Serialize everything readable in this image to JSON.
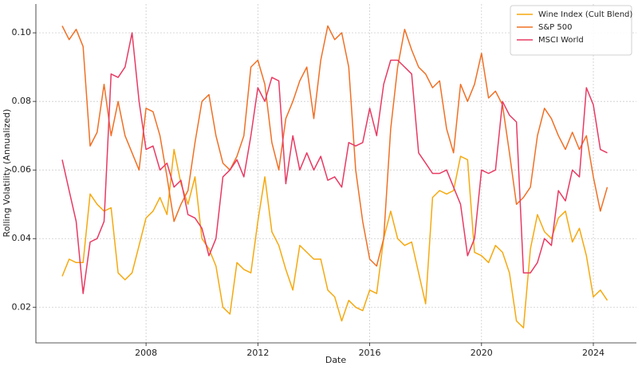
{
  "chart_data": {
    "type": "line",
    "x_label": "Date",
    "y_label": "Rolling Volatility (Annualized)",
    "x": [
      2005,
      2005.25,
      2005.5,
      2005.75,
      2006,
      2006.25,
      2006.5,
      2006.75,
      2007,
      2007.25,
      2007.5,
      2007.75,
      2008,
      2008.25,
      2008.5,
      2008.75,
      2009,
      2009.25,
      2009.5,
      2009.75,
      2010,
      2010.25,
      2010.5,
      2010.75,
      2011,
      2011.25,
      2011.5,
      2011.75,
      2012,
      2012.25,
      2012.5,
      2012.75,
      2013,
      2013.25,
      2013.5,
      2013.75,
      2014,
      2014.25,
      2014.5,
      2014.75,
      2015,
      2015.25,
      2015.5,
      2015.75,
      2016,
      2016.25,
      2016.5,
      2016.75,
      2017,
      2017.25,
      2017.5,
      2017.75,
      2018,
      2018.25,
      2018.5,
      2018.75,
      2019,
      2019.25,
      2019.5,
      2019.75,
      2020,
      2020.25,
      2020.5,
      2020.75,
      2021,
      2021.25,
      2021.5,
      2021.75,
      2022,
      2022.25,
      2022.5,
      2022.75,
      2023,
      2023.25,
      2023.5,
      2023.75,
      2024,
      2024.25,
      2024.5
    ],
    "series": [
      {
        "name": "Wine Index (Cult Blend)",
        "color": "#f5a90f",
        "values": [
          0.029,
          0.034,
          0.033,
          0.033,
          0.053,
          0.05,
          0.048,
          0.049,
          0.03,
          0.028,
          0.03,
          0.038,
          0.046,
          0.048,
          0.052,
          0.047,
          0.066,
          0.056,
          0.05,
          0.058,
          0.04,
          0.037,
          0.032,
          0.02,
          0.018,
          0.033,
          0.031,
          0.03,
          0.045,
          0.058,
          0.042,
          0.038,
          0.031,
          0.025,
          0.038,
          0.036,
          0.034,
          0.034,
          0.025,
          0.023,
          0.016,
          0.022,
          0.02,
          0.019,
          0.025,
          0.024,
          0.04,
          0.048,
          0.04,
          0.038,
          0.039,
          0.03,
          0.021,
          0.052,
          0.054,
          0.053,
          0.054,
          0.064,
          0.063,
          0.036,
          0.035,
          0.033,
          0.038,
          0.036,
          0.03,
          0.016,
          0.014,
          0.037,
          0.047,
          0.042,
          0.04,
          0.046,
          0.048,
          0.039,
          0.043,
          0.035,
          0.023,
          0.025,
          0.022
        ]
      },
      {
        "name": "S&P 500",
        "color": "#f07025",
        "values": [
          0.102,
          0.098,
          0.101,
          0.096,
          0.067,
          0.071,
          0.085,
          0.07,
          0.08,
          0.07,
          0.065,
          0.06,
          0.078,
          0.077,
          0.07,
          0.058,
          0.045,
          0.05,
          0.054,
          0.068,
          0.08,
          0.082,
          0.07,
          0.062,
          0.06,
          0.064,
          0.07,
          0.09,
          0.092,
          0.085,
          0.068,
          0.06,
          0.075,
          0.08,
          0.086,
          0.09,
          0.075,
          0.092,
          0.102,
          0.098,
          0.1,
          0.09,
          0.06,
          0.045,
          0.034,
          0.032,
          0.04,
          0.072,
          0.09,
          0.101,
          0.095,
          0.09,
          0.088,
          0.084,
          0.086,
          0.072,
          0.065,
          0.085,
          0.08,
          0.085,
          0.094,
          0.081,
          0.083,
          0.079,
          0.065,
          0.05,
          0.052,
          0.055,
          0.07,
          0.078,
          0.075,
          0.07,
          0.066,
          0.071,
          0.066,
          0.07,
          0.058,
          0.048,
          0.055
        ]
      },
      {
        "name": "MSCI World",
        "color": "#e83a63",
        "values": [
          0.063,
          0.054,
          0.045,
          0.024,
          0.039,
          0.04,
          0.045,
          0.088,
          0.087,
          0.09,
          0.1,
          0.08,
          0.066,
          0.067,
          0.06,
          0.062,
          0.055,
          0.057,
          0.047,
          0.046,
          0.043,
          0.035,
          0.04,
          0.058,
          0.06,
          0.063,
          0.058,
          0.07,
          0.084,
          0.08,
          0.087,
          0.086,
          0.056,
          0.07,
          0.06,
          0.065,
          0.06,
          0.064,
          0.057,
          0.058,
          0.055,
          0.068,
          0.067,
          0.068,
          0.078,
          0.07,
          0.085,
          0.092,
          0.092,
          0.09,
          0.088,
          0.065,
          0.062,
          0.059,
          0.059,
          0.06,
          0.055,
          0.05,
          0.035,
          0.04,
          0.06,
          0.059,
          0.06,
          0.08,
          0.076,
          0.074,
          0.03,
          0.03,
          0.033,
          0.04,
          0.038,
          0.054,
          0.051,
          0.06,
          0.058,
          0.084,
          0.079,
          0.066,
          0.065
        ]
      }
    ],
    "xlim": [
      2004.06,
      2025.54
    ],
    "xticks": [
      2008,
      2012,
      2016,
      2020,
      2024
    ],
    "ylim": [
      0.0096,
      0.1084
    ],
    "yticks": [
      {
        "value": 0.02,
        "label": "0.02"
      },
      {
        "value": 0.04,
        "label": "0.04"
      },
      {
        "value": 0.06,
        "label": "0.06"
      },
      {
        "value": 0.08,
        "label": "0.08"
      },
      {
        "value": 0.1,
        "label": "0.10"
      }
    ],
    "grid": true,
    "legend": "upper right"
  }
}
